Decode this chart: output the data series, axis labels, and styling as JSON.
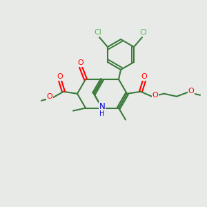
{
  "background_color": "#e8eae8",
  "bond_color": "#3a7a3a",
  "o_color": "#ff0000",
  "n_color": "#0000cc",
  "cl_color": "#5ab55a",
  "figsize": [
    3.0,
    3.0
  ],
  "dpi": 100,
  "xlim": [
    0,
    300
  ],
  "ylim": [
    0,
    300
  ]
}
